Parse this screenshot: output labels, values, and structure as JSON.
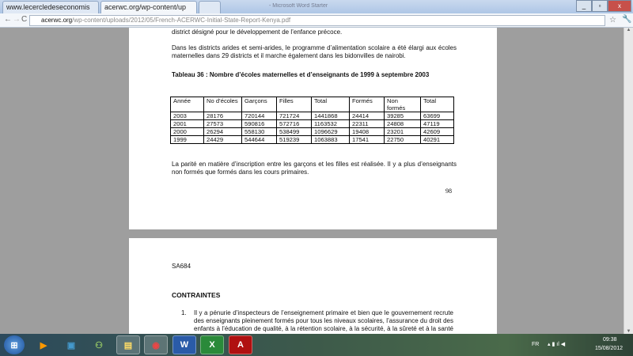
{
  "browser": {
    "tabs": [
      {
        "label": "www.lecercledeseconomis"
      },
      {
        "label": "acerwc.org/wp-content/up"
      }
    ],
    "window_title": "- Microsoft Word Starter",
    "url_domain": "acerwc.org",
    "url_path": "/wp-content/uploads/2012/05/French-ACERWC-Initial-State-Report-Kenya.pdf"
  },
  "page1": {
    "top_line": "district désigné pour le développement de l’enfance précoce.",
    "para1": "Dans les districts arides et semi-arides, le programme d’alimentation scolaire a été élargi aux écoles maternelles dans 29 districts et il marche également dans les bidonvilles de nairobi.",
    "table_title": "Tableau 36 : Nombre d’écoles maternelles et d’enseignants   de 1999 à septembre 2003",
    "headers": [
      "Année",
      "No d’écoles",
      "Garçons",
      "Filles",
      "Total",
      "Formés",
      "Non formés",
      "Total"
    ],
    "rows": [
      [
        "2003",
        "28176",
        "720144",
        "721724",
        "1441868",
        "24414",
        "39285",
        "63699"
      ],
      [
        "2001",
        "27573",
        "590816",
        "572716",
        "1163532",
        "22311",
        "24808",
        "47119"
      ],
      [
        "2000",
        "26294",
        "558130",
        "538499",
        "1096629",
        "19408",
        "23201",
        "42609"
      ],
      [
        "1999",
        "24429",
        "544644",
        "519239",
        "1063883",
        "17541",
        "22750",
        "40291"
      ]
    ],
    "para2": "La parité en matière d’inscription entre les garçons et les filles est réalisée. Il y a plus d’enseignants non formés que formés dans les cours primaires.",
    "page_number": "98"
  },
  "page2": {
    "code": "SA684",
    "heading": "CONTRAINTES",
    "item_number": "1.",
    "item_text": "Il y a pénurie d’inspecteurs de l’enseignement primaire et bien que le gouvernement recrute des enseignants pleinement formés pour tous les niveaux scolaires, l’assurance du droit des enfants à l’éducation de qualité, à la rétention scolaire, à la sécurité, à la sûreté et à la santé en éducation est"
  },
  "taskbar": {
    "apps": [
      "start",
      "media-player",
      "store",
      "network",
      "explorer",
      "chrome",
      "word",
      "excel",
      "acrobat"
    ],
    "lang": "FR",
    "time": "09:38",
    "date": "15/08/2012"
  }
}
